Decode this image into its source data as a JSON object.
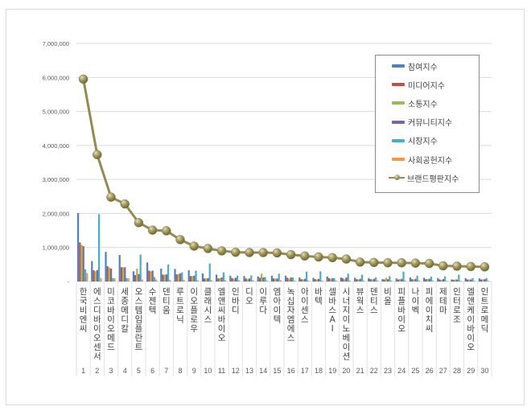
{
  "chart_data": {
    "type": "bar+line",
    "title": "",
    "xlabel": "",
    "ylabel": "",
    "ylim": [
      0,
      7000000
    ],
    "yticks": [
      "-",
      "1,000,000",
      "2,000,000",
      "3,000,000",
      "4,000,000",
      "5,000,000",
      "6,000,000",
      "7,000,000"
    ],
    "grid": true,
    "legend_position": "upper-right-inside",
    "categories": [
      "한국비엔씨",
      "에스디바이오센서",
      "미코바이오메드",
      "세종메디칼",
      "오스템임플란트",
      "수젠텍",
      "덴티움",
      "루트로닉",
      "이오플로우",
      "클래시스",
      "엘앤씨바이오",
      "인바디",
      "디오",
      "이루다",
      "엠아이텍",
      "녹십자엠에스",
      "아이센스",
      "바텍",
      "셀바스AI",
      "시너지이노베이션",
      "뷰웍스",
      "덴티스",
      "비올",
      "피플바이오",
      "나이벡",
      "피에이치씨",
      "제테마",
      "인터로조",
      "엘앤케이바이오",
      "인트로메딕"
    ],
    "ranks": [
      "1",
      "2",
      "3",
      "4",
      "5",
      "6",
      "7",
      "8",
      "9",
      "10",
      "11",
      "12",
      "13",
      "14",
      "15",
      "16",
      "17",
      "18",
      "19",
      "20",
      "21",
      "22",
      "23",
      "24",
      "25",
      "26",
      "27",
      "28",
      "29",
      "30"
    ],
    "series": [
      {
        "name": "참여지수",
        "kind": "bar",
        "color": "#4f81bd",
        "values": [
          2010000,
          600000,
          870000,
          780000,
          300000,
          560000,
          380000,
          370000,
          330000,
          240000,
          200000,
          170000,
          160000,
          150000,
          170000,
          170000,
          120000,
          110000,
          150000,
          120000,
          110000,
          100000,
          70000,
          90000,
          120000,
          110000,
          100000,
          60000,
          100000,
          90000
        ]
      },
      {
        "name": "미디어지수",
        "kind": "bar",
        "color": "#c0504d",
        "values": [
          1150000,
          330000,
          450000,
          420000,
          190000,
          320000,
          200000,
          210000,
          160000,
          90000,
          90000,
          100000,
          90000,
          110000,
          90000,
          110000,
          70000,
          70000,
          100000,
          90000,
          70000,
          70000,
          60000,
          60000,
          70000,
          70000,
          60000,
          50000,
          60000,
          60000
        ]
      },
      {
        "name": "소통지수",
        "kind": "bar",
        "color": "#9bbb59",
        "values": [
          1080000,
          300000,
          410000,
          420000,
          380000,
          300000,
          200000,
          220000,
          160000,
          90000,
          100000,
          80000,
          70000,
          230000,
          80000,
          80000,
          60000,
          60000,
          80000,
          70000,
          60000,
          60000,
          110000,
          70000,
          60000,
          70000,
          50000,
          60000,
          60000,
          60000
        ]
      },
      {
        "name": "커뮤니티지수",
        "kind": "bar",
        "color": "#8064a2",
        "values": [
          1040000,
          340000,
          380000,
          420000,
          220000,
          320000,
          210000,
          240000,
          170000,
          100000,
          120000,
          110000,
          90000,
          120000,
          90000,
          120000,
          80000,
          80000,
          100000,
          120000,
          80000,
          80000,
          70000,
          80000,
          80000,
          80000,
          70000,
          60000,
          60000,
          70000
        ]
      },
      {
        "name": "시장지수",
        "kind": "bar",
        "color": "#4bacc6",
        "values": [
          360000,
          1980000,
          100000,
          100000,
          790000,
          130000,
          500000,
          270000,
          320000,
          530000,
          270000,
          170000,
          180000,
          130000,
          230000,
          120000,
          290000,
          300000,
          100000,
          230000,
          200000,
          120000,
          160000,
          290000,
          170000,
          140000,
          150000,
          200000,
          100000,
          100000
        ]
      },
      {
        "name": "사회공헌지수",
        "kind": "bar",
        "color": "#f79646",
        "values": [
          250000,
          100000,
          90000,
          90000,
          60000,
          60000,
          50000,
          50000,
          40000,
          40000,
          40000,
          40000,
          40000,
          30000,
          40000,
          30000,
          30000,
          30000,
          30000,
          30000,
          30000,
          30000,
          30000,
          30000,
          30000,
          30000,
          20000,
          20000,
          20000,
          20000
        ]
      },
      {
        "name": "브랜드평판지수",
        "kind": "line",
        "color": "#948a54",
        "values": [
          5950000,
          3730000,
          2480000,
          2280000,
          1730000,
          1510000,
          1490000,
          1230000,
          1040000,
          970000,
          900000,
          860000,
          850000,
          850000,
          840000,
          790000,
          750000,
          720000,
          700000,
          660000,
          570000,
          560000,
          550000,
          550000,
          540000,
          530000,
          460000,
          450000,
          440000,
          430000
        ]
      }
    ]
  },
  "legend": {
    "items": [
      {
        "label": "참여지수",
        "color": "#4f81bd",
        "kind": "bar"
      },
      {
        "label": "미디어지수",
        "color": "#c0504d",
        "kind": "bar"
      },
      {
        "label": "소통지수",
        "color": "#9bbb59",
        "kind": "bar"
      },
      {
        "label": "커뮤니티지수",
        "color": "#8064a2",
        "kind": "bar"
      },
      {
        "label": "시장지수",
        "color": "#4bacc6",
        "kind": "bar"
      },
      {
        "label": "사회공헌지수",
        "color": "#f79646",
        "kind": "bar"
      },
      {
        "label": "브랜드평판지수",
        "color": "#948a54",
        "kind": "line"
      }
    ]
  }
}
